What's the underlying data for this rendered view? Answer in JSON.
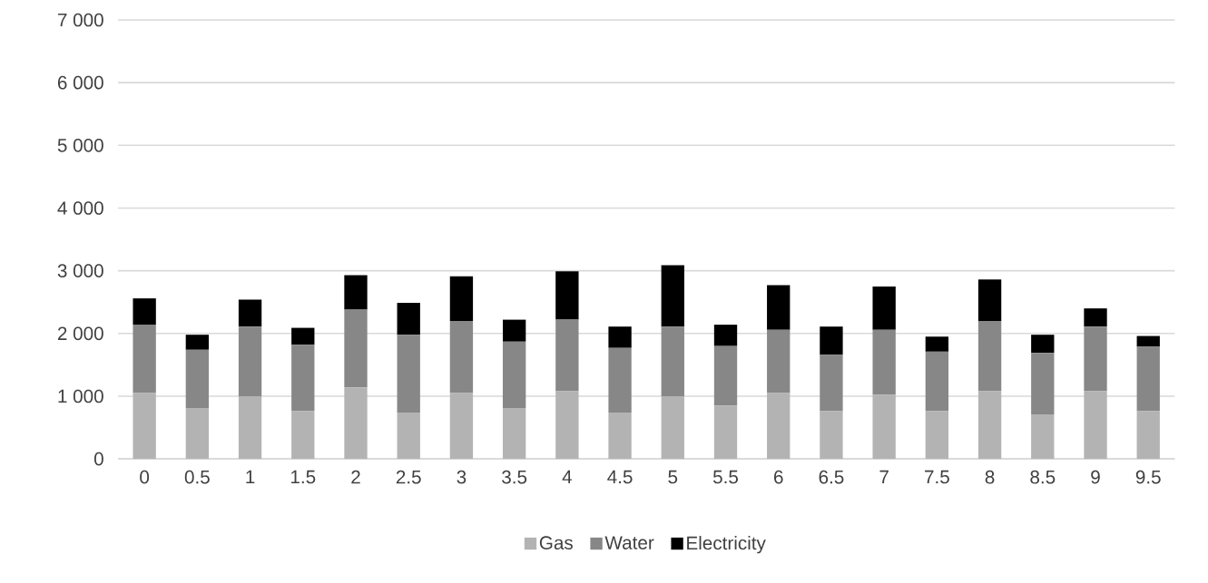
{
  "chart_data": {
    "type": "bar",
    "stacked": true,
    "categories": [
      "0",
      "0.5",
      "1",
      "1.5",
      "2",
      "2.5",
      "3",
      "3.5",
      "4",
      "4.5",
      "5",
      "5.5",
      "6",
      "6.5",
      "7",
      "7.5",
      "8",
      "8.5",
      "9",
      "9.5"
    ],
    "series": [
      {
        "name": "Gas",
        "color": "#b3b3b3",
        "values": [
          1050,
          810,
          1000,
          760,
          1140,
          740,
          1050,
          810,
          1080,
          740,
          1000,
          850,
          1050,
          760,
          1020,
          760,
          1080,
          710,
          1080,
          760
        ]
      },
      {
        "name": "Water",
        "color": "#878787",
        "values": [
          1090,
          930,
          1110,
          1060,
          1240,
          1240,
          1150,
          1060,
          1140,
          1030,
          1110,
          950,
          1010,
          900,
          1040,
          950,
          1120,
          980,
          1030,
          1030
        ]
      },
      {
        "name": "Electricity",
        "color": "#000000",
        "values": [
          420,
          240,
          430,
          270,
          550,
          510,
          710,
          350,
          770,
          340,
          980,
          340,
          710,
          450,
          690,
          240,
          660,
          290,
          290,
          170
        ]
      }
    ],
    "ylim": [
      0,
      7000
    ],
    "yticks": [
      0,
      {
        "value": 1000,
        "label": "1 000"
      },
      {
        "value": 2000,
        "label": "2 000"
      },
      {
        "value": 3000,
        "label": "3 000"
      },
      {
        "value": 4000,
        "label": "4 000"
      },
      {
        "value": 5000,
        "label": "5 000"
      },
      {
        "value": 6000,
        "label": "6 000"
      },
      {
        "value": 7000,
        "label": "7 000"
      }
    ],
    "grid": "y",
    "legend": "bottom"
  }
}
